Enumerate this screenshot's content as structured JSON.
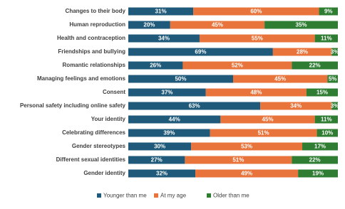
{
  "chart_data": {
    "type": "stacked-bar",
    "categories": [
      "Changes to their body",
      "Human reproduction",
      "Health and contraception",
      "Friendships and bullying",
      "Romantic relationships",
      "Managing feelings and emotions",
      "Consent",
      "Personal safety including online safety",
      "Your identity",
      "Celebrating differences",
      "Gender stereotypes",
      "Different sexual identities",
      "Gender identity"
    ],
    "series": [
      {
        "name": "Younger than me",
        "color": "#1f5a7a",
        "values": [
          31,
          20,
          34,
          69,
          26,
          50,
          37,
          63,
          44,
          39,
          30,
          27,
          32
        ],
        "value_labels": [
          "31%",
          "20%",
          "34%",
          "69%",
          "26%",
          "50%",
          "37%",
          "63%",
          "44%",
          "39%",
          "30%",
          "27%",
          "32%"
        ]
      },
      {
        "name": "At my age",
        "color": "#e8743b",
        "values": [
          60,
          45,
          55,
          28,
          52,
          45,
          48,
          34,
          45,
          51,
          53,
          51,
          49
        ],
        "value_labels": [
          "60%",
          "45%",
          "55%",
          "28%",
          "52%",
          "45%",
          "48%",
          "34%",
          "45%",
          "51%",
          "53%",
          "51%",
          "49%"
        ]
      },
      {
        "name": "Older than me",
        "color": "#2e7d32",
        "values": [
          9,
          35,
          11,
          3,
          22,
          5,
          15,
          3,
          11,
          10,
          17,
          22,
          19
        ],
        "value_labels": [
          "9%",
          "35%",
          "11%",
          "3%",
          "22%",
          "5%",
          "15%",
          "3%",
          "11%",
          "10%",
          "17%",
          "22%",
          "19%"
        ]
      }
    ]
  }
}
